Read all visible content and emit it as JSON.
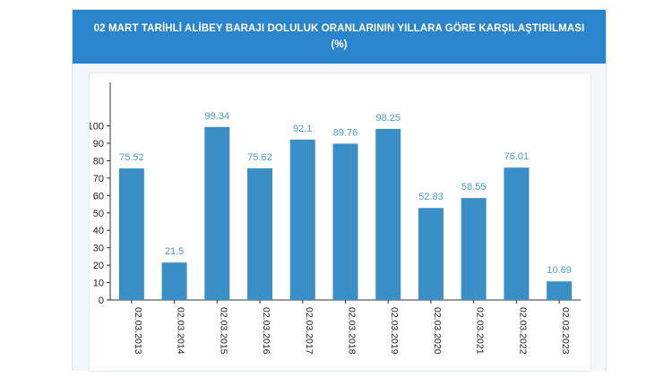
{
  "chart_data": {
    "type": "bar",
    "title": "02 MART TARİHLİ ALİBEY BARAJI DOLULUK ORANLARININ YILLARA GÖRE KARŞILAŞTIRILMASI",
    "subtitle": "(%)",
    "categories": [
      "02.03.2013",
      "02.03.2014",
      "02.03.2015",
      "02.03.2016",
      "02.03.2017",
      "02.03.2018",
      "02.03.2019",
      "02.03.2020",
      "02.03.2021",
      "02.03.2022",
      "02.03.2023"
    ],
    "values": [
      75.52,
      21.5,
      99.34,
      75.62,
      92.1,
      89.76,
      98.25,
      52.83,
      58.55,
      76.01,
      10.69
    ],
    "value_labels": [
      "75.52",
      "21.5",
      "99.34",
      "75.62",
      "92.1",
      "89.76",
      "98.25",
      "52.83",
      "58.55",
      "76.01",
      "10.69"
    ],
    "yticks": [
      "0",
      "10",
      "20",
      "30",
      "40",
      "50",
      "60",
      "70",
      "80",
      "90",
      "100"
    ],
    "ylim": [
      0,
      100
    ],
    "grid": false,
    "bar_color": "#3a8fc6",
    "label_color": "#4a9acb"
  }
}
